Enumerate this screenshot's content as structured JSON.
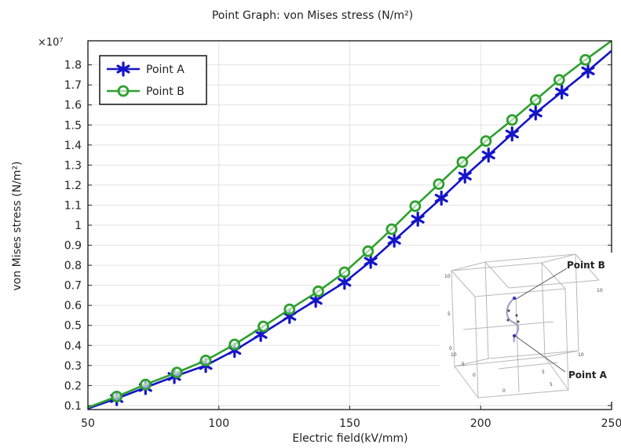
{
  "chart_data": {
    "type": "line",
    "title": "Point Graph: von Mises stress (N/m²)",
    "xlabel": "Electric field(kV/mm)",
    "ylabel": "von Mises stress (N/m²)",
    "exponent_label": "×10⁷",
    "xlim": [
      50,
      250
    ],
    "ylim": [
      0.08,
      1.92
    ],
    "xticks": [
      50,
      100,
      150,
      200,
      250
    ],
    "yticks": [
      0.1,
      0.2,
      0.3,
      0.4,
      0.5,
      0.6,
      0.7,
      0.8,
      0.9,
      1,
      1.1,
      1.2,
      1.3,
      1.4,
      1.5,
      1.6,
      1.7,
      1.8
    ],
    "grid": true,
    "legend_position": "top-left",
    "series": [
      {
        "name": "Point A",
        "color": "#1414c8",
        "marker": "asterisk",
        "x": [
          50,
          61,
          72,
          83,
          95,
          106,
          116,
          127,
          137,
          148,
          158,
          167,
          176,
          185,
          194,
          203,
          212,
          221,
          231,
          241,
          250
        ],
        "y": [
          0.085,
          0.135,
          0.19,
          0.245,
          0.3,
          0.375,
          0.455,
          0.545,
          0.625,
          0.715,
          0.82,
          0.925,
          1.03,
          1.135,
          1.245,
          1.35,
          1.455,
          1.56,
          1.665,
          1.77,
          1.87
        ]
      },
      {
        "name": "Point B",
        "color": "#2ea02e",
        "marker": "circle",
        "x": [
          50,
          61,
          72,
          84,
          95,
          106,
          117,
          127,
          138,
          148,
          157,
          166,
          175,
          184,
          193,
          202,
          212,
          221,
          230,
          240,
          250
        ],
        "y": [
          0.09,
          0.145,
          0.205,
          0.265,
          0.325,
          0.405,
          0.495,
          0.58,
          0.67,
          0.765,
          0.87,
          0.98,
          1.095,
          1.205,
          1.315,
          1.42,
          1.525,
          1.625,
          1.725,
          1.825,
          1.92
        ]
      }
    ],
    "inset": {
      "labels": [
        "Point B",
        "Point A"
      ],
      "axis_ticks": [
        "10",
        "5",
        "0",
        "10",
        "5",
        "0",
        "5",
        "10",
        "0",
        "5",
        "10"
      ]
    }
  },
  "colors": {
    "axis": "#222222",
    "grid": "#e2e2e2",
    "inset_line": "#b8b8b8"
  }
}
